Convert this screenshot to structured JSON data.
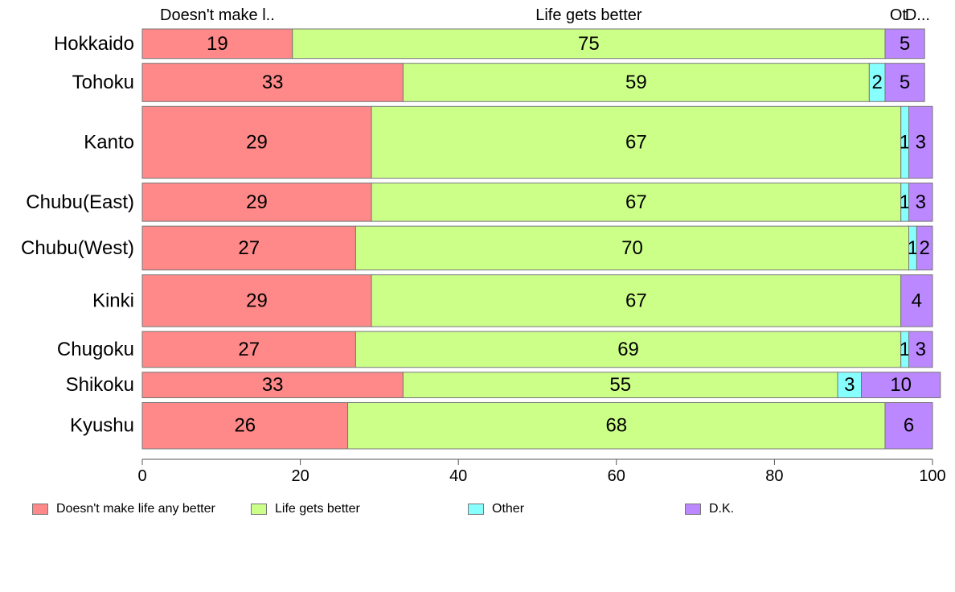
{
  "chart_data": {
    "type": "bar",
    "orientation": "horizontal",
    "stacked": true,
    "categories": [
      "Hokkaido",
      "Tohoku",
      "Kanto",
      "Chubu(East)",
      "Chubu(West)",
      "Kinki",
      "Chugoku",
      "Shikoku",
      "Kyushu"
    ],
    "series": [
      {
        "name": "Doesn't make life any better",
        "short_label": "Doesn't make l..",
        "color": "#ff8888",
        "values": [
          19,
          33,
          29,
          29,
          27,
          29,
          27,
          33,
          26
        ]
      },
      {
        "name": "Life gets better",
        "short_label": "Life gets better",
        "color": "#ccff88",
        "values": [
          75,
          59,
          67,
          67,
          70,
          67,
          69,
          55,
          68
        ]
      },
      {
        "name": "Other",
        "short_label": "Ot",
        "color": "#88ffff",
        "values": [
          0,
          2,
          1,
          1,
          1,
          0,
          1,
          3,
          0
        ]
      },
      {
        "name": "D.K.",
        "short_label": "D...",
        "color": "#bb88ff",
        "values": [
          5,
          5,
          3,
          3,
          2,
          4,
          3,
          10,
          6
        ]
      }
    ],
    "row_weights": [
      37,
      48,
      90,
      48,
      55,
      65,
      45,
      32,
      58
    ],
    "xlim": [
      0,
      100
    ],
    "xticks": [
      0,
      20,
      40,
      60,
      80,
      100
    ],
    "legend_position": "bottom"
  }
}
